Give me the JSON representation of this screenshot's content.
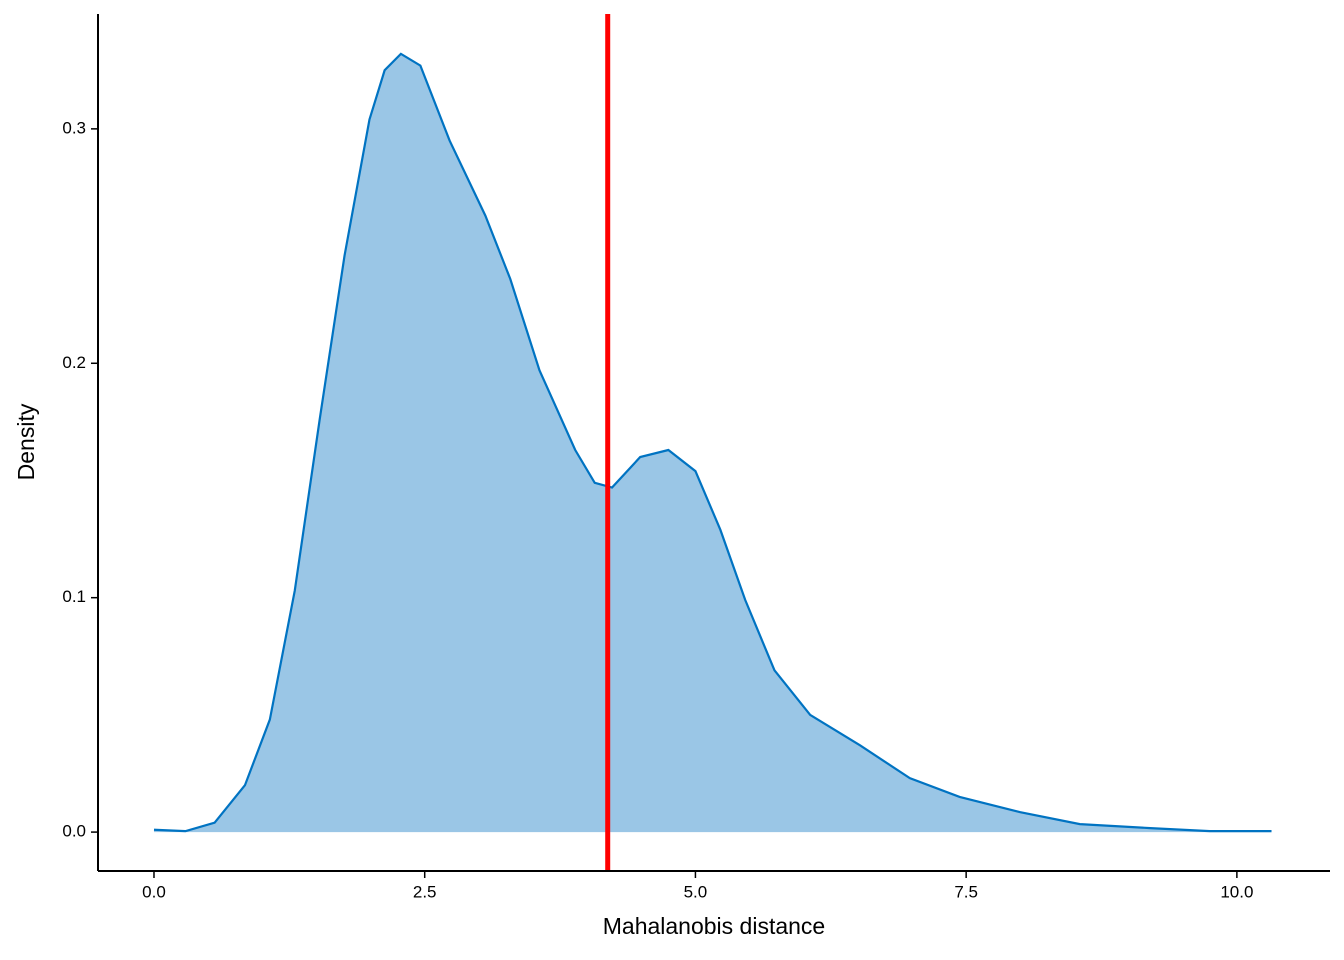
{
  "chart_data": {
    "type": "density",
    "xlabel": "Mahalanobis distance",
    "ylabel": "Density",
    "x": [
      0,
      0.29,
      0.56,
      0.84,
      1.07,
      1.3,
      1.53,
      1.76,
      1.99,
      2.13,
      2.28,
      2.46,
      2.73,
      3.06,
      3.29,
      3.56,
      3.89,
      4.07,
      4.23,
      4.49,
      4.75,
      5.0,
      5.23,
      5.46,
      5.73,
      6.06,
      6.52,
      6.98,
      7.44,
      8.0,
      8.55,
      9.2,
      9.75,
      10.32
    ],
    "values": [
      0.001,
      0.0004,
      0.004,
      0.02,
      0.048,
      0.103,
      0.176,
      0.246,
      0.304,
      0.325,
      0.332,
      0.327,
      0.295,
      0.263,
      0.236,
      0.197,
      0.163,
      0.149,
      0.147,
      0.16,
      0.163,
      0.154,
      0.129,
      0.099,
      0.069,
      0.05,
      0.037,
      0.023,
      0.015,
      0.0085,
      0.0034,
      0.0017,
      0.0004,
      0.0004
    ],
    "color": "#0073c2",
    "fill": "#9ac6e6",
    "vline": 4.19,
    "vline_color": "#ff0000",
    "xlim": [
      -0.517,
      10.86
    ],
    "ylim": [
      -0.0166,
      0.349
    ],
    "xticks": [
      {
        "value": 0,
        "label": "0.0"
      },
      2.5,
      {
        "value": 5,
        "label": "5.0"
      },
      7.5,
      {
        "value": 10,
        "label": "10.0"
      }
    ],
    "yticks": [
      {
        "value": 0,
        "label": "0.0"
      },
      0.1,
      0.2,
      0.3
    ]
  }
}
